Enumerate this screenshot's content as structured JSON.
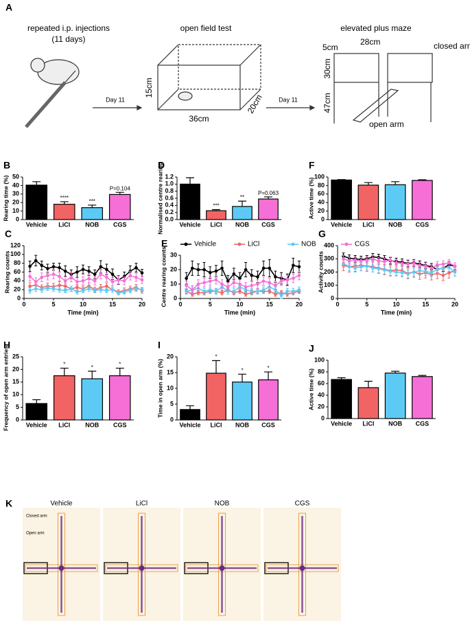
{
  "schematic": {
    "panel": "A",
    "injection": "repeated i.p. injections",
    "duration": "(11 days)",
    "day_1": "Day 11",
    "open_field": "open field test",
    "of_height": "15cm",
    "of_length": "36cm",
    "of_width": "20cm",
    "day_2": "Day 11",
    "plus_maze": "elevated plus maze",
    "epm_wall": "5cm",
    "epm_length": "28cm",
    "closed_arm": "closed arm",
    "epm_arm_height": "30cm",
    "epm_leg": "47cm",
    "open_arm": "open arm"
  },
  "chart_data": [
    {
      "type": "bar",
      "panel": "B",
      "ylabel": "Rearing time (%)",
      "categories": [
        "Vehicle",
        "LiCl",
        "NOB",
        "CGS"
      ],
      "colors": [
        "#000000",
        "#f26464",
        "#5ccaf5",
        "#f56fd6"
      ],
      "values": [
        40.5,
        18,
        14,
        29.5
      ],
      "errors": [
        4,
        3,
        3,
        2.5
      ],
      "annotations": [
        null,
        "****",
        "***",
        "P=0.104"
      ],
      "ylim": [
        0,
        50
      ],
      "yticks": [
        0,
        10,
        20,
        30,
        40,
        50
      ]
    },
    {
      "type": "bar",
      "panel": "D",
      "ylabel": "Normalised centre rearing",
      "categories": [
        "Vehicle",
        "LiCl",
        "NOB",
        "CGS"
      ],
      "colors": [
        "#000000",
        "#f26464",
        "#5ccaf5",
        "#f56fd6"
      ],
      "values": [
        1.0,
        0.25,
        0.37,
        0.58
      ],
      "errors": [
        0.18,
        0.03,
        0.15,
        0.06
      ],
      "annotations": [
        null,
        "***",
        "**",
        "P=0.063"
      ],
      "ylim": [
        0,
        1.2
      ],
      "yticks": [
        {
          "value": 0,
          "label": "0.0"
        },
        0.2,
        0.4,
        0.6,
        0.8,
        {
          "value": 1,
          "label": "1.0"
        },
        1.2
      ]
    },
    {
      "type": "bar",
      "panel": "F",
      "ylabel": "Active time (%)",
      "categories": [
        "Vehicle",
        "LiCl",
        "NOB",
        "CGS"
      ],
      "colors": [
        "#000000",
        "#f26464",
        "#5ccaf5",
        "#f56fd6"
      ],
      "values": [
        93,
        81,
        82,
        92
      ],
      "errors": [
        1,
        6,
        7,
        1.5
      ],
      "ylim": [
        0,
        100
      ],
      "yticks": [
        0,
        20,
        40,
        60,
        80,
        100
      ]
    },
    {
      "type": "line",
      "panel": "C",
      "ylabel": "Rearing counts",
      "xlabel": "Time (min)",
      "x": [
        1,
        2,
        3,
        4,
        5,
        6,
        7,
        8,
        9,
        10,
        11,
        12,
        13,
        14,
        15,
        16,
        17,
        18,
        19,
        20
      ],
      "xlim": [
        0,
        20
      ],
      "xticks": [
        0,
        5,
        10,
        15,
        20
      ],
      "ylim": [
        0,
        120
      ],
      "yticks": [
        0,
        20,
        40,
        60,
        80,
        100,
        120
      ],
      "series": [
        {
          "color": "#000000",
          "values": [
            73,
            86,
            75,
            68,
            72,
            70,
            62,
            55,
            60,
            66,
            62,
            55,
            72,
            66,
            55,
            42,
            50,
            62,
            70,
            58
          ],
          "errors": [
            12,
            12,
            10,
            10,
            8,
            10,
            12,
            10,
            12,
            10,
            10,
            10,
            14,
            12,
            12,
            10,
            10,
            12,
            10,
            8
          ]
        },
        {
          "color": "#f26464",
          "values": [
            28,
            30,
            25,
            28,
            27,
            30,
            28,
            22,
            25,
            22,
            28,
            20,
            25,
            28,
            20,
            15,
            18,
            22,
            25,
            18
          ],
          "errors": [
            8,
            8,
            6,
            7,
            7,
            8,
            7,
            6,
            7,
            6,
            7,
            6,
            7,
            7,
            6,
            5,
            6,
            6,
            7,
            6
          ]
        },
        {
          "color": "#5ccaf5",
          "values": [
            18,
            22,
            20,
            24,
            22,
            20,
            18,
            22,
            15,
            18,
            22,
            18,
            20,
            18,
            20,
            12,
            15,
            18,
            22,
            20
          ],
          "errors": [
            6,
            6,
            6,
            6,
            6,
            6,
            5,
            6,
            5,
            5,
            6,
            5,
            6,
            5,
            6,
            4,
            5,
            5,
            6,
            5
          ]
        },
        {
          "color": "#f56fd6",
          "values": [
            50,
            38,
            48,
            52,
            55,
            50,
            40,
            48,
            38,
            40,
            45,
            40,
            55,
            48,
            38,
            42,
            40,
            52,
            48,
            42
          ],
          "errors": [
            10,
            9,
            10,
            10,
            10,
            10,
            9,
            10,
            9,
            9,
            10,
            9,
            10,
            10,
            9,
            9,
            9,
            10,
            9,
            8
          ]
        }
      ]
    },
    {
      "type": "line",
      "panel": "E",
      "ylabel": "Centre rearing counts",
      "xlabel": "Time (min)",
      "legend": "top",
      "x": [
        1,
        2,
        3,
        4,
        5,
        6,
        7,
        8,
        9,
        10,
        11,
        12,
        13,
        14,
        15,
        16,
        17,
        18,
        19,
        20
      ],
      "xlim": [
        0,
        20
      ],
      "xticks": [
        0,
        5,
        10,
        15,
        20
      ],
      "ylim": [
        0,
        30
      ],
      "yticks": [
        0,
        10,
        20,
        30
      ],
      "series": [
        {
          "name": "Vehicle",
          "color": "#000000",
          "values": [
            14,
            21,
            20,
            20,
            18,
            19,
            21,
            12,
            17,
            14,
            20,
            16,
            15,
            21,
            21,
            15,
            14,
            13,
            23,
            22
          ],
          "errors": [
            4,
            5,
            4,
            5,
            4,
            4,
            5,
            4,
            4,
            4,
            5,
            4,
            4,
            5,
            6,
            4,
            4,
            4,
            5,
            4
          ]
        },
        {
          "name": "LiCl",
          "color": "#f26464",
          "values": [
            5,
            3,
            4,
            4,
            5,
            5,
            4,
            6,
            4,
            5,
            3,
            4,
            5,
            5,
            5,
            3,
            4,
            3,
            4,
            5
          ],
          "errors": [
            1.5,
            1.5,
            1.5,
            1.5,
            1.5,
            1.5,
            1.5,
            1.5,
            1.5,
            1.5,
            1.5,
            1.5,
            1.5,
            1.5,
            1.5,
            1.5,
            1.5,
            1.5,
            1.5,
            1.5
          ]
        },
        {
          "name": "NOB",
          "color": "#5ccaf5",
          "values": [
            5,
            6,
            7,
            5,
            6,
            5,
            8,
            5,
            5,
            8,
            6,
            5,
            5,
            6,
            8,
            6,
            2,
            5,
            5,
            6
          ],
          "errors": [
            2,
            2,
            2,
            2,
            2,
            2,
            2,
            2,
            2,
            2,
            2,
            2,
            2,
            2,
            2,
            2,
            2,
            2,
            2,
            2
          ]
        },
        {
          "name": "CGS",
          "color": "#f56fd6",
          "values": [
            9,
            6,
            10,
            11,
            12,
            13,
            10,
            8,
            11,
            10,
            8,
            9,
            10,
            12,
            11,
            9,
            12,
            13,
            14,
            16
          ],
          "errors": [
            3,
            3,
            3,
            3,
            3,
            3,
            3,
            3,
            3,
            3,
            3,
            3,
            3,
            3,
            3,
            3,
            3,
            3,
            3,
            3
          ]
        }
      ]
    },
    {
      "type": "line",
      "panel": "G",
      "ylabel": "Activity counts",
      "xlabel": "Time (min)",
      "x": [
        1,
        2,
        3,
        4,
        5,
        6,
        7,
        8,
        9,
        10,
        11,
        12,
        13,
        14,
        15,
        16,
        17,
        18,
        19,
        20
      ],
      "xlim": [
        0,
        20
      ],
      "xticks": [
        0,
        5,
        10,
        15,
        20
      ],
      "ylim": [
        0,
        400
      ],
      "yticks": [
        0,
        100,
        200,
        300,
        400
      ],
      "series": [
        {
          "color": "#000000",
          "values": [
            320,
            305,
            300,
            295,
            300,
            315,
            310,
            300,
            285,
            280,
            275,
            265,
            270,
            260,
            250,
            240,
            220,
            230,
            255,
            245
          ],
          "errors": [
            25,
            25,
            25,
            25,
            25,
            25,
            25,
            25,
            25,
            25,
            25,
            25,
            25,
            25,
            25,
            25,
            25,
            25,
            25,
            25
          ]
        },
        {
          "color": "#f26464",
          "values": [
            250,
            240,
            245,
            250,
            245,
            240,
            230,
            220,
            210,
            215,
            210,
            190,
            200,
            185,
            195,
            180,
            190,
            175,
            195,
            210
          ],
          "errors": [
            40,
            40,
            40,
            40,
            40,
            40,
            40,
            40,
            40,
            40,
            40,
            40,
            40,
            40,
            40,
            40,
            40,
            40,
            40,
            40
          ]
        },
        {
          "color": "#5ccaf5",
          "values": [
            265,
            240,
            230,
            240,
            245,
            230,
            225,
            215,
            205,
            200,
            195,
            185,
            200,
            210,
            205,
            195,
            220,
            230,
            235,
            200
          ],
          "errors": [
            30,
            30,
            30,
            30,
            30,
            30,
            30,
            30,
            30,
            30,
            30,
            30,
            30,
            30,
            30,
            30,
            30,
            30,
            30,
            30
          ]
        },
        {
          "color": "#f56fd6",
          "values": [
            300,
            285,
            290,
            285,
            290,
            300,
            285,
            280,
            290,
            270,
            265,
            260,
            265,
            250,
            245,
            230,
            255,
            260,
            270,
            245
          ],
          "errors": [
            25,
            25,
            25,
            25,
            25,
            25,
            25,
            25,
            25,
            25,
            25,
            25,
            25,
            25,
            25,
            25,
            25,
            25,
            25,
            25
          ]
        }
      ]
    },
    {
      "type": "bar",
      "panel": "H",
      "ylabel": "Frequency of open arm entries",
      "categories": [
        "Vehicle",
        "LiCl",
        "NOB",
        "CGS"
      ],
      "colors": [
        "#000000",
        "#f26464",
        "#5ccaf5",
        "#f56fd6"
      ],
      "values": [
        6.5,
        17.5,
        16.3,
        17.5
      ],
      "errors": [
        1.5,
        3,
        3,
        3
      ],
      "annotations": [
        null,
        "*",
        "*",
        "*"
      ],
      "ylim": [
        0,
        25
      ],
      "yticks": [
        0,
        5,
        10,
        15,
        20,
        25
      ]
    },
    {
      "type": "bar",
      "panel": "I",
      "ylabel": "Time in open arm (%)",
      "categories": [
        "Vehicle",
        "LiCl",
        "NOB",
        "CGS"
      ],
      "colors": [
        "#000000",
        "#f26464",
        "#5ccaf5",
        "#f56fd6"
      ],
      "values": [
        3.3,
        14.8,
        12,
        12.7
      ],
      "errors": [
        1.2,
        4,
        2.5,
        2.5
      ],
      "annotations": [
        null,
        "*",
        "*",
        "*"
      ],
      "ylim": [
        0,
        20
      ],
      "yticks": [
        0,
        5,
        10,
        15,
        20
      ]
    },
    {
      "type": "bar",
      "panel": "J",
      "ylabel": "Active time (%)",
      "categories": [
        "Vehicle",
        "LiCl",
        "NOB",
        "CGS"
      ],
      "colors": [
        "#000000",
        "#f26464",
        "#5ccaf5",
        "#f56fd6"
      ],
      "values": [
        67,
        53,
        78,
        72
      ],
      "errors": [
        3,
        11,
        3,
        2
      ],
      "ylim": [
        0,
        100
      ],
      "yticks": [
        0,
        20,
        40,
        60,
        80,
        100
      ]
    }
  ],
  "maze_panel": {
    "panel": "K",
    "groups": [
      "Vehicle",
      "LiCl",
      "NOB",
      "CGS"
    ],
    "closed_arm": "Closed arm",
    "open_arm": "Open arm"
  }
}
